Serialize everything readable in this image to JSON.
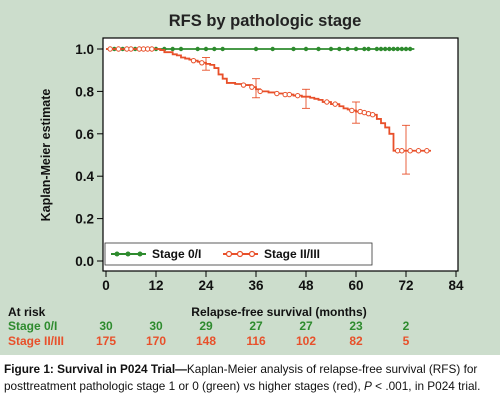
{
  "chart_data": {
    "type": "line",
    "title": "RFS by pathologic stage",
    "xlabel": "Relapse-free survival (months)",
    "ylabel": "Kaplan-Meier estimate",
    "xlim": [
      0,
      84
    ],
    "ylim": [
      0,
      1.0
    ],
    "x_ticks": [
      0,
      12,
      24,
      36,
      48,
      60,
      72,
      84
    ],
    "y_ticks": [
      0.0,
      0.2,
      0.4,
      0.6,
      0.8,
      1.0
    ],
    "grid": false,
    "legend_position": "bottom-left",
    "series": [
      {
        "name": "Stage 0/I",
        "color": "#2e8b2e",
        "points": [
          [
            0,
            1.0
          ],
          [
            74,
            1.0
          ]
        ],
        "censor_x": [
          2,
          4,
          7,
          10,
          12,
          14,
          16,
          18,
          22,
          24,
          26,
          28,
          36,
          40,
          45,
          48,
          51,
          54,
          56,
          58,
          60,
          62,
          63,
          65,
          66,
          67,
          68,
          69,
          70,
          71,
          72,
          73
        ]
      },
      {
        "name": "Stage II/III",
        "color": "#e8502a",
        "points": [
          [
            0,
            1.0
          ],
          [
            12,
            1.0
          ],
          [
            13,
            0.995
          ],
          [
            14,
            0.985
          ],
          [
            16,
            0.975
          ],
          [
            17,
            0.97
          ],
          [
            18,
            0.96
          ],
          [
            19,
            0.955
          ],
          [
            20,
            0.95
          ],
          [
            21,
            0.945
          ],
          [
            22,
            0.94
          ],
          [
            23,
            0.935
          ],
          [
            24,
            0.93
          ],
          [
            25,
            0.925
          ],
          [
            26,
            0.91
          ],
          [
            27,
            0.88
          ],
          [
            28,
            0.86
          ],
          [
            29,
            0.84
          ],
          [
            31,
            0.835
          ],
          [
            33,
            0.83
          ],
          [
            35,
            0.82
          ],
          [
            36,
            0.81
          ],
          [
            37,
            0.8
          ],
          [
            39,
            0.795
          ],
          [
            41,
            0.79
          ],
          [
            43,
            0.785
          ],
          [
            45,
            0.78
          ],
          [
            47,
            0.775
          ],
          [
            49,
            0.77
          ],
          [
            50,
            0.765
          ],
          [
            51,
            0.76
          ],
          [
            52,
            0.75
          ],
          [
            54,
            0.74
          ],
          [
            56,
            0.73
          ],
          [
            57,
            0.72
          ],
          [
            58,
            0.715
          ],
          [
            59,
            0.71
          ],
          [
            60,
            0.705
          ],
          [
            62,
            0.7
          ],
          [
            63,
            0.695
          ],
          [
            64,
            0.69
          ],
          [
            65,
            0.67
          ],
          [
            66,
            0.65
          ],
          [
            67,
            0.63
          ],
          [
            68,
            0.6
          ],
          [
            69,
            0.52
          ],
          [
            78,
            0.52
          ]
        ],
        "censor_x": [
          1,
          3,
          5,
          6,
          8,
          9,
          10,
          11,
          21,
          23,
          33,
          35,
          37,
          41,
          43,
          44,
          46,
          53,
          55,
          59,
          61,
          62,
          63,
          64,
          70,
          71,
          73,
          75,
          77
        ],
        "error_bars": [
          {
            "x": 24,
            "y": 0.93,
            "low": 0.9,
            "high": 0.96
          },
          {
            "x": 36,
            "y": 0.81,
            "low": 0.77,
            "high": 0.86
          },
          {
            "x": 48,
            "y": 0.77,
            "low": 0.72,
            "high": 0.81
          },
          {
            "x": 60,
            "y": 0.705,
            "low": 0.65,
            "high": 0.75
          },
          {
            "x": 72,
            "y": 0.52,
            "low": 0.41,
            "high": 0.64
          }
        ]
      }
    ],
    "at_risk": {
      "label": "At risk",
      "rows": [
        {
          "name": "Stage 0/I",
          "color": "#2e8b2e",
          "counts": [
            "30",
            "30",
            "29",
            "27",
            "27",
            "23",
            "2"
          ]
        },
        {
          "name": "Stage II/III",
          "color": "#e8502a",
          "counts": [
            "175",
            "170",
            "148",
            "116",
            "102",
            "82",
            "5"
          ]
        }
      ],
      "months": [
        0,
        12,
        24,
        36,
        48,
        60,
        72
      ]
    }
  },
  "caption": {
    "lead": "Figure 1: Survival in P024 Trial—",
    "body": "Kaplan-Meier analysis of relapse-free survival (RFS) for posttreatment pathologic stage 1 or 0 (green) vs higher stages (red), ",
    "p_symbol": "P",
    "tail": " < .001, in P024 trial."
  }
}
